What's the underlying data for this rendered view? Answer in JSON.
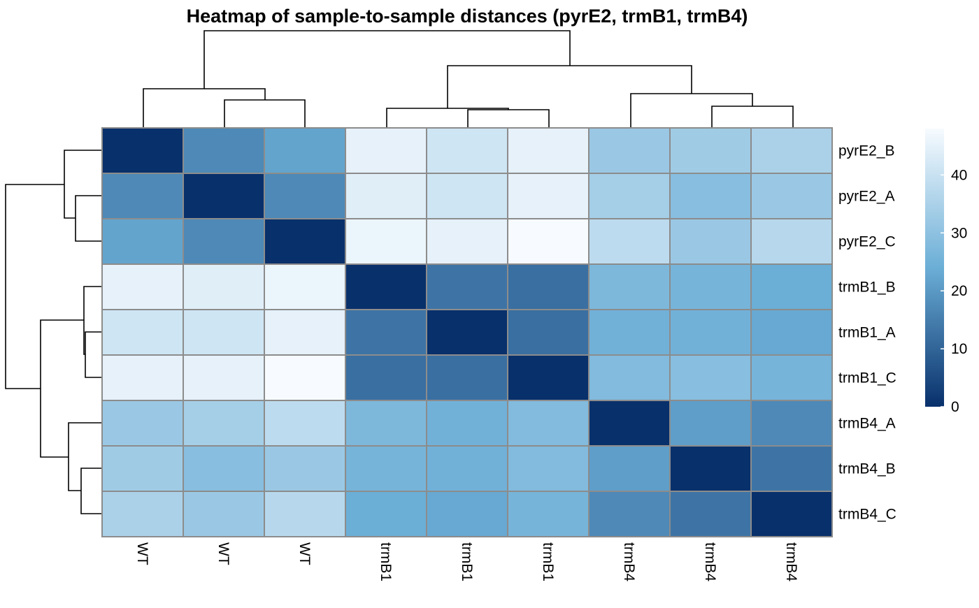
{
  "chart_data": {
    "type": "heatmap",
    "title": "Heatmap of sample-to-sample distances (pyrE2, trmB1, trmB4)",
    "row_labels": [
      "pyrE2_B",
      "pyrE2_A",
      "pyrE2_C",
      "trmB1_B",
      "trmB1_A",
      "trmB1_C",
      "trmB4_A",
      "trmB4_B",
      "trmB4_C"
    ],
    "col_labels": [
      "WT",
      "WT",
      "WT",
      "trmB1",
      "trmB1",
      "trmB1",
      "trmB4",
      "trmB4",
      "trmB4"
    ],
    "values": [
      [
        0,
        17,
        22,
        45,
        41,
        45,
        32,
        33,
        35
      ],
      [
        17,
        0,
        17,
        44,
        41,
        45,
        34,
        29,
        32
      ],
      [
        22,
        17,
        0,
        46,
        45,
        48,
        38,
        32,
        37
      ],
      [
        45,
        44,
        46,
        0,
        13,
        12,
        27,
        26,
        24
      ],
      [
        41,
        41,
        45,
        13,
        0,
        12,
        25,
        25,
        23
      ],
      [
        45,
        45,
        48,
        12,
        12,
        0,
        28,
        29,
        26
      ],
      [
        32,
        34,
        38,
        27,
        25,
        28,
        0,
        21,
        17
      ],
      [
        33,
        29,
        32,
        26,
        25,
        28,
        21,
        0,
        13
      ],
      [
        35,
        32,
        37,
        24,
        23,
        26,
        17,
        13,
        0
      ]
    ],
    "color_range": [
      0,
      48
    ],
    "colorbar_ticks": [
      0,
      10,
      20,
      30,
      40
    ],
    "color_low": "#08306b",
    "color_mid": "#6baed6",
    "color_high": "#f7fbff",
    "cell_border_color": "#8c8c8c",
    "dendrograms": [
      "rows",
      "columns"
    ]
  }
}
